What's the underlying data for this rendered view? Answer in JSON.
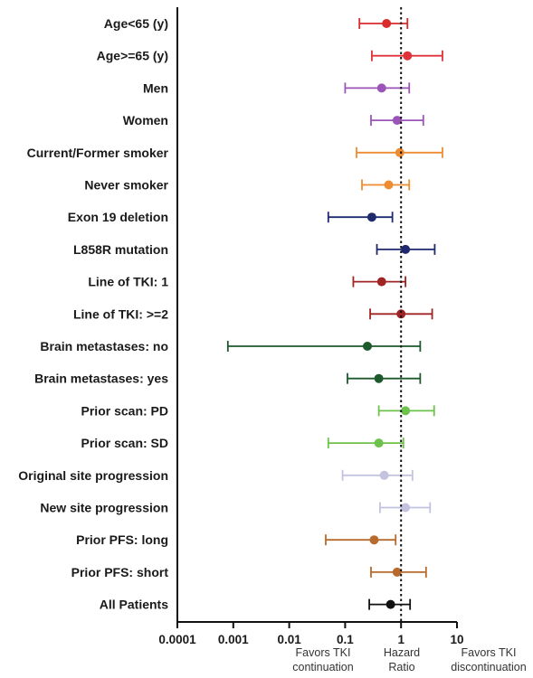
{
  "chart_data": {
    "type": "forest",
    "x_scale": "log",
    "xlim": [
      0.0001,
      10
    ],
    "reference_line": 1,
    "x_ticks": [
      "0.0001",
      "0.001",
      "0.01",
      "0.1",
      "1",
      "10"
    ],
    "x_tick_values": [
      0.0001,
      0.001,
      0.01,
      0.1,
      1,
      10
    ],
    "xlabel": "Hazard Ratio",
    "annotations": {
      "left": [
        "Favors TKI",
        "continuation"
      ],
      "right": [
        "Favors TKI",
        "discontinuation"
      ]
    },
    "rows": [
      {
        "label": "Age<65 (y)",
        "hr": 0.55,
        "lo": 0.18,
        "hi": 1.3,
        "color": "#d92b2b"
      },
      {
        "label": "Age>=65 (y)",
        "hr": 1.3,
        "lo": 0.3,
        "hi": 5.5,
        "color": "#e0323a"
      },
      {
        "label": "Men",
        "hr": 0.45,
        "lo": 0.1,
        "hi": 1.4,
        "color": "#9b55b8"
      },
      {
        "label": "Women",
        "hr": 0.85,
        "lo": 0.29,
        "hi": 2.5,
        "color": "#9b55b8"
      },
      {
        "label": "Current/Former smoker",
        "hr": 0.95,
        "lo": 0.16,
        "hi": 5.5,
        "color": "#ee8c32"
      },
      {
        "label": "Never smoker",
        "hr": 0.6,
        "lo": 0.2,
        "hi": 1.4,
        "color": "#ee8c32"
      },
      {
        "label": "Exon 19 deletion",
        "hr": 0.3,
        "lo": 0.05,
        "hi": 0.7,
        "color": "#1f2a6e"
      },
      {
        "label": "L858R mutation",
        "hr": 1.2,
        "lo": 0.37,
        "hi": 4.0,
        "color": "#1f2a6e"
      },
      {
        "label": "Line of TKI: 1",
        "hr": 0.45,
        "lo": 0.14,
        "hi": 1.2,
        "color": "#a12424"
      },
      {
        "label": "Line of TKI: >=2",
        "hr": 1.0,
        "lo": 0.28,
        "hi": 3.6,
        "color": "#a12424"
      },
      {
        "label": "Brain metastases: no",
        "hr": 0.25,
        "lo": 0.0008,
        "hi": 2.2,
        "color": "#1c5a2c"
      },
      {
        "label": "Brain metastases: yes",
        "hr": 0.4,
        "lo": 0.11,
        "hi": 2.2,
        "color": "#1c5a2c"
      },
      {
        "label": "Prior scan: PD",
        "hr": 1.2,
        "lo": 0.4,
        "hi": 3.9,
        "color": "#6cc24a"
      },
      {
        "label": "Prior scan: SD",
        "hr": 0.4,
        "lo": 0.05,
        "hi": 1.1,
        "color": "#6cc24a"
      },
      {
        "label": "Original site progression",
        "hr": 0.5,
        "lo": 0.09,
        "hi": 1.6,
        "color": "#c3c3e0"
      },
      {
        "label": "New site progression",
        "hr": 1.2,
        "lo": 0.42,
        "hi": 3.3,
        "color": "#c3c3e0"
      },
      {
        "label": "Prior PFS: long",
        "hr": 0.33,
        "lo": 0.045,
        "hi": 0.8,
        "color": "#b86a2c"
      },
      {
        "label": "Prior PFS: short",
        "hr": 0.85,
        "lo": 0.29,
        "hi": 2.8,
        "color": "#b86a2c"
      },
      {
        "label": "All Patients",
        "hr": 0.65,
        "lo": 0.27,
        "hi": 1.45,
        "color": "#111111"
      }
    ]
  }
}
